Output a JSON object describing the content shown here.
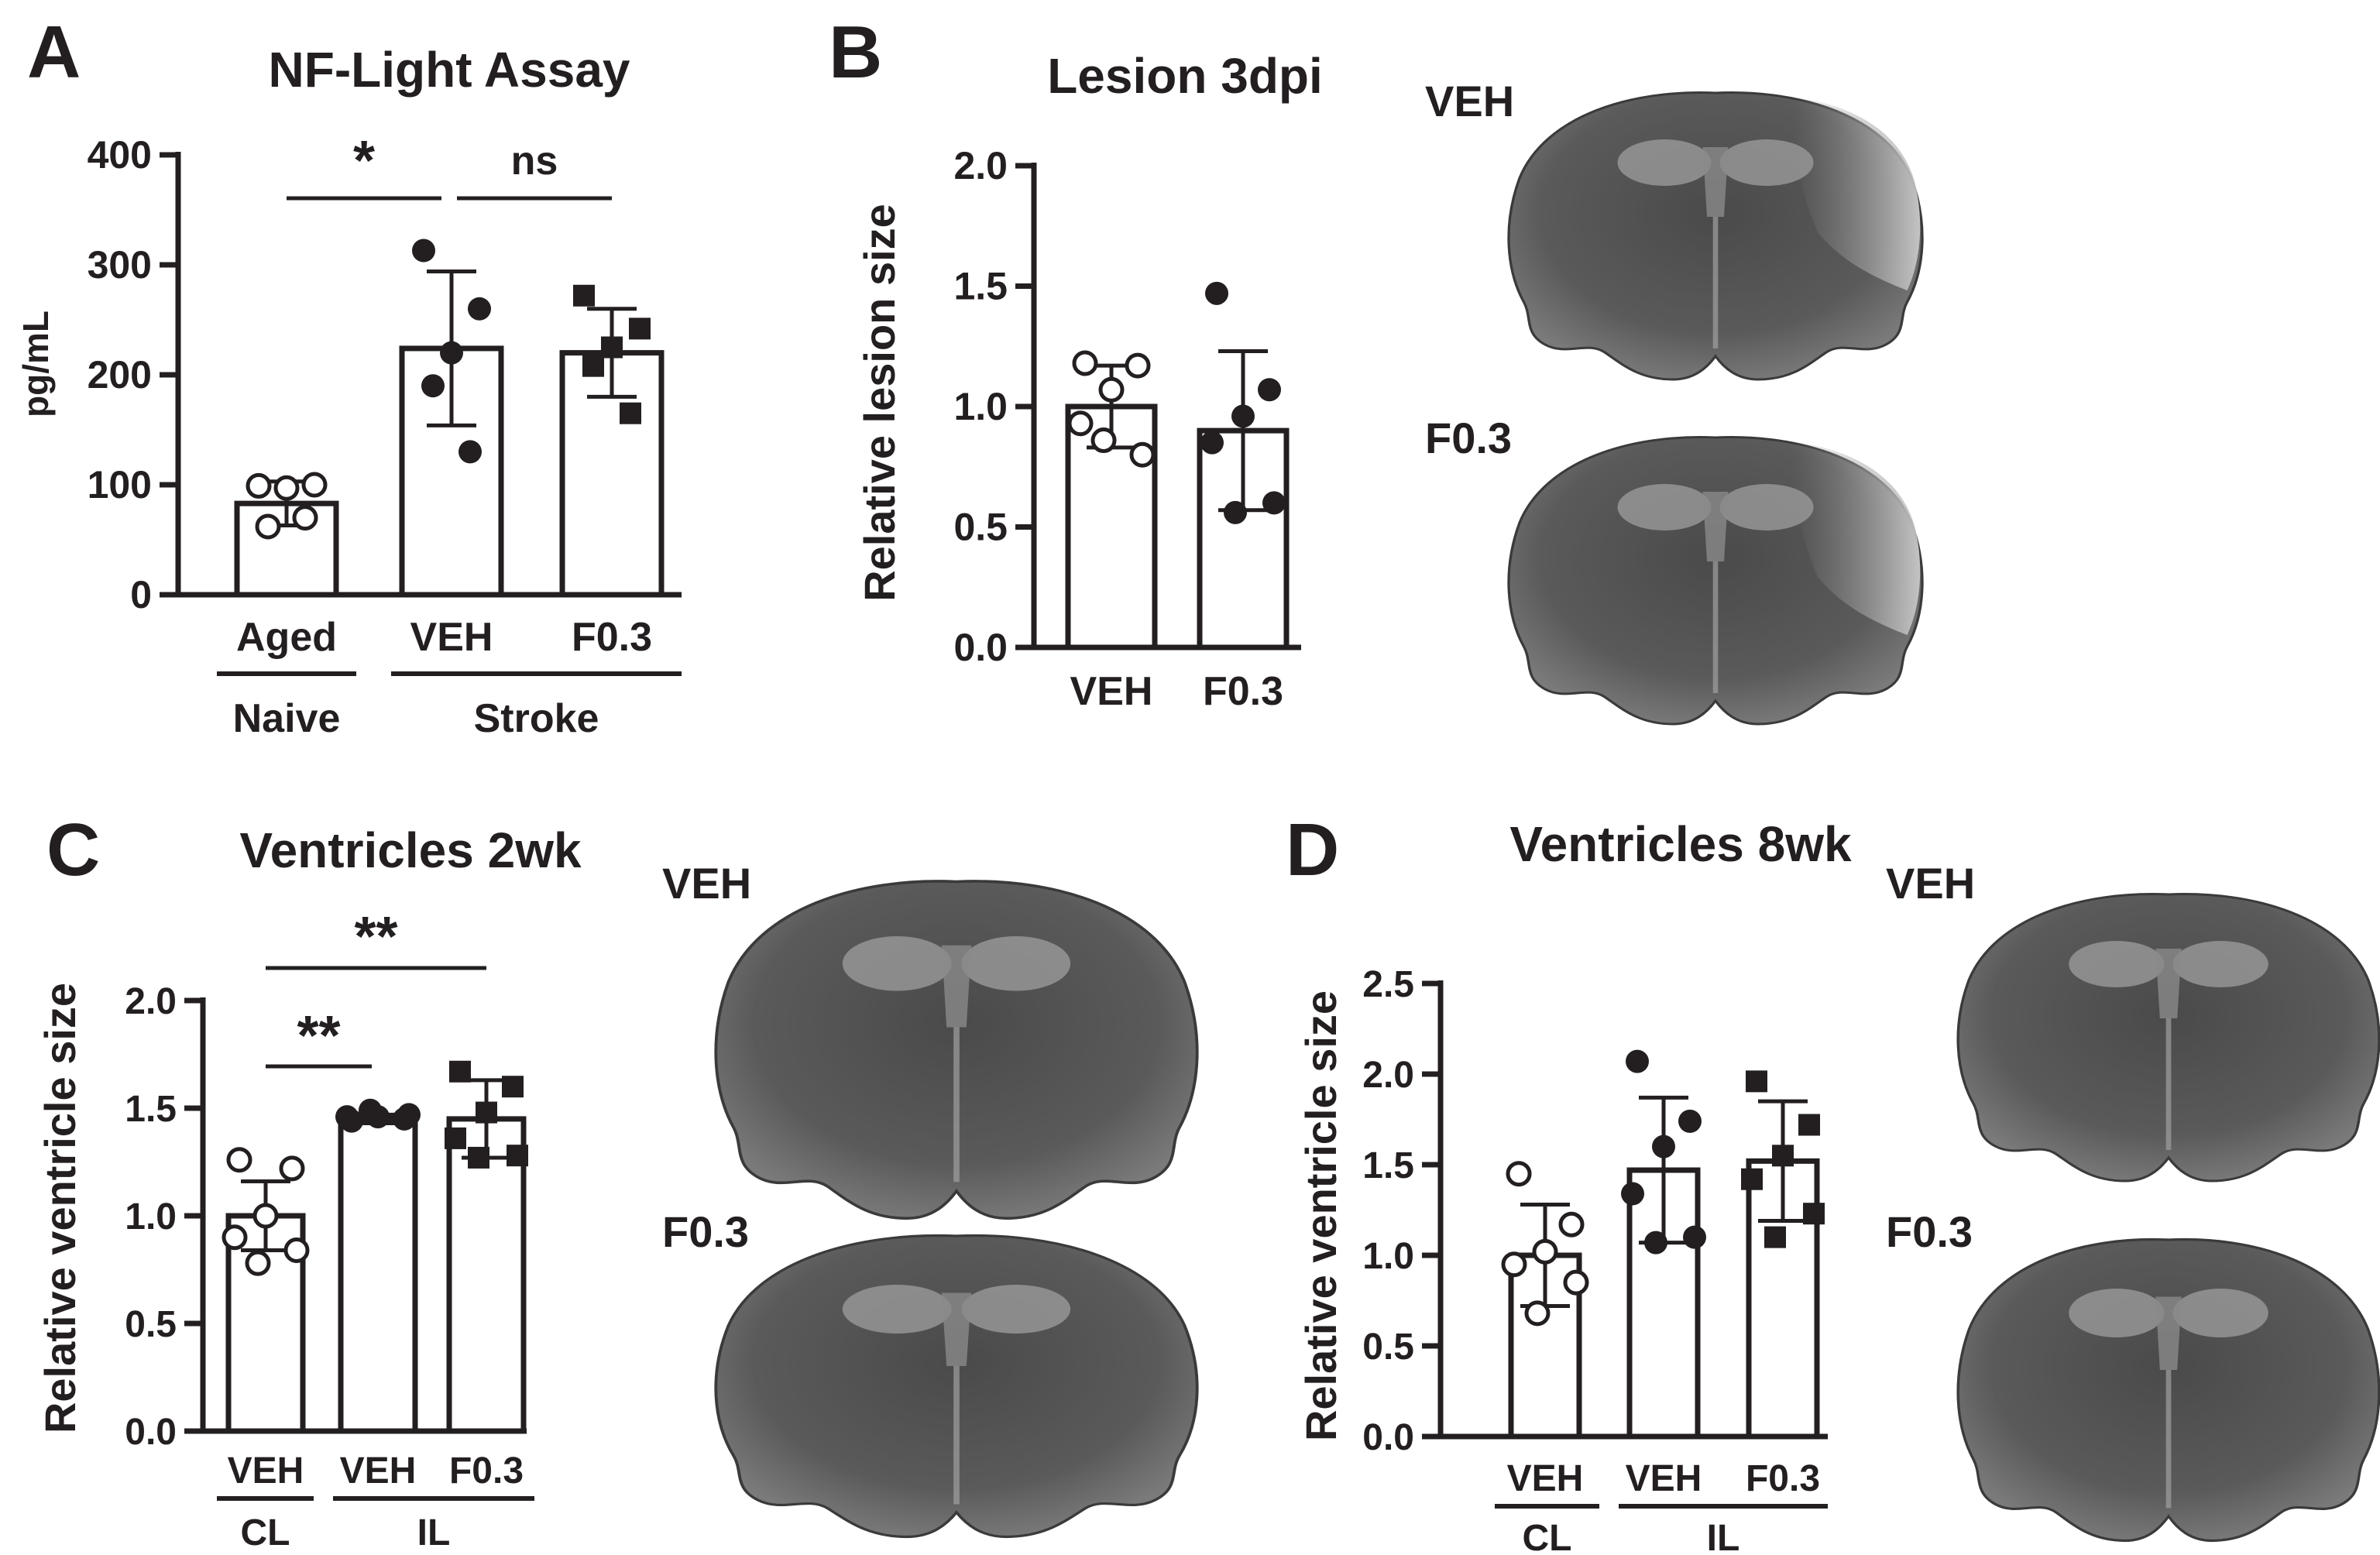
{
  "panels": [
    {
      "letter": "A",
      "title": "NF-Light Assay",
      "ylabel": "pg/mL",
      "ylim": [
        0,
        400
      ],
      "yticks": [
        "0",
        "100",
        "200",
        "300",
        "400"
      ],
      "groups": [
        {
          "label": "Aged",
          "mean": 83,
          "sd": 20,
          "marker": "open-circle",
          "points": [
            99,
            100,
            97,
            62,
            70
          ]
        },
        {
          "label": "VEH",
          "mean": 224,
          "sd": 70,
          "marker": "filled-circle",
          "points": [
            313,
            260,
            220,
            190,
            130
          ]
        },
        {
          "label": "F0.3",
          "mean": 220,
          "sd": 40,
          "marker": "filled-square",
          "points": [
            272,
            242,
            225,
            208,
            165
          ]
        }
      ],
      "group_labels": [
        {
          "label": "Naive",
          "span": [
            0,
            0
          ]
        },
        {
          "label": "Stroke",
          "span": [
            1,
            2
          ]
        }
      ],
      "significance": [
        {
          "label": "*",
          "from": 0,
          "to": 1
        },
        {
          "label": "ns",
          "from": 1,
          "to": 2
        }
      ]
    },
    {
      "letter": "B",
      "title": "Lesion 3dpi",
      "ylabel": "Relative lesion size",
      "ylim": [
        0,
        2.0
      ],
      "yticks": [
        "0.0",
        "0.5",
        "1.0",
        "1.5",
        "2.0"
      ],
      "groups": [
        {
          "label": "VEH",
          "mean": 1.0,
          "sd": 0.17,
          "marker": "open-circle",
          "points": [
            1.18,
            1.17,
            1.07,
            0.93,
            0.8,
            0.86
          ]
        },
        {
          "label": "F0.3",
          "mean": 0.9,
          "sd": 0.33,
          "marker": "filled-circle",
          "points": [
            1.47,
            1.07,
            0.96,
            0.85,
            0.6,
            0.56
          ]
        }
      ],
      "group_labels": [],
      "significance": [],
      "images": [
        {
          "label": "VEH",
          "lesion": true
        },
        {
          "label": "F0.3",
          "lesion": true
        }
      ]
    },
    {
      "letter": "C",
      "title": "Ventricles 2wk",
      "ylabel": "Relative ventricle size",
      "ylim": [
        0,
        2.0
      ],
      "yticks": [
        "0.0",
        "0.5",
        "1.0",
        "1.5",
        "2.0"
      ],
      "groups": [
        {
          "label": "VEH",
          "mean": 1.0,
          "sd": 0.16,
          "marker": "open-circle",
          "points": [
            1.26,
            1.22,
            1.0,
            0.9,
            0.84,
            0.78
          ]
        },
        {
          "label": "VEH",
          "mean": 1.45,
          "sd": 0.02,
          "marker": "filled-circle",
          "points": [
            1.44,
            1.45,
            1.46,
            1.46,
            1.47,
            1.49
          ]
        },
        {
          "label": "F0.3",
          "mean": 1.45,
          "sd": 0.18,
          "marker": "filled-square",
          "points": [
            1.67,
            1.6,
            1.48,
            1.36,
            1.28,
            1.27
          ]
        }
      ],
      "group_labels": [
        {
          "label": "CL",
          "span": [
            0,
            0
          ]
        },
        {
          "label": "IL",
          "span": [
            1,
            2
          ]
        }
      ],
      "significance": [
        {
          "label": "**",
          "from": 0,
          "to": 1
        },
        {
          "label": "**",
          "from": 0,
          "to": 2
        }
      ],
      "images": [
        {
          "label": "VEH",
          "lesion": false
        },
        {
          "label": "F0.3",
          "lesion": false
        }
      ]
    },
    {
      "letter": "D",
      "title": "Ventricles 8wk",
      "ylabel": "Relative ventricle size",
      "ylim": [
        0,
        2.5
      ],
      "yticks": [
        "0.0",
        "0.5",
        "1.0",
        "1.5",
        "2.0",
        "2.5"
      ],
      "groups": [
        {
          "label": "VEH",
          "mean": 1.0,
          "sd": 0.28,
          "marker": "open-circle",
          "points": [
            1.45,
            1.17,
            1.02,
            0.95,
            0.85,
            0.68
          ]
        },
        {
          "label": "VEH",
          "mean": 1.47,
          "sd": 0.4,
          "marker": "filled-circle",
          "points": [
            2.07,
            1.74,
            1.6,
            1.34,
            1.1,
            1.07
          ]
        },
        {
          "label": "F0.3",
          "mean": 1.52,
          "sd": 0.33,
          "marker": "filled-square",
          "points": [
            1.96,
            1.72,
            1.55,
            1.42,
            1.23,
            1.1
          ]
        }
      ],
      "group_labels": [
        {
          "label": "CL",
          "span": [
            0,
            0
          ]
        },
        {
          "label": "IL",
          "span": [
            1,
            2
          ]
        }
      ],
      "significance": [],
      "images": [
        {
          "label": "VEH",
          "lesion": false
        },
        {
          "label": "F0.3",
          "lesion": false
        }
      ]
    }
  ],
  "chart_data": [
    {
      "type": "bar",
      "title": "NF-Light Assay",
      "ylabel": "pg/mL",
      "categories": [
        "Aged",
        "VEH",
        "F0.3"
      ],
      "values": [
        83,
        224,
        220
      ],
      "error": [
        20,
        70,
        40
      ],
      "ylim": [
        0,
        400
      ],
      "group_labels": [
        "Naive",
        "Stroke"
      ]
    },
    {
      "type": "bar",
      "title": "Lesion 3dpi",
      "ylabel": "Relative lesion size",
      "categories": [
        "VEH",
        "F0.3"
      ],
      "values": [
        1.0,
        0.9
      ],
      "error": [
        0.17,
        0.33
      ],
      "ylim": [
        0,
        2.0
      ]
    },
    {
      "type": "bar",
      "title": "Ventricles 2wk",
      "ylabel": "Relative ventricle size",
      "categories": [
        "VEH",
        "VEH",
        "F0.3"
      ],
      "values": [
        1.0,
        1.45,
        1.45
      ],
      "error": [
        0.16,
        0.02,
        0.18
      ],
      "ylim": [
        0,
        2.0
      ],
      "group_labels": [
        "CL",
        "IL"
      ]
    },
    {
      "type": "bar",
      "title": "Ventricles 8wk",
      "ylabel": "Relative ventricle size",
      "categories": [
        "VEH",
        "VEH",
        "F0.3"
      ],
      "values": [
        1.0,
        1.47,
        1.52
      ],
      "error": [
        0.28,
        0.4,
        0.33
      ],
      "ylim": [
        0,
        2.5
      ],
      "group_labels": [
        "CL",
        "IL"
      ]
    }
  ]
}
